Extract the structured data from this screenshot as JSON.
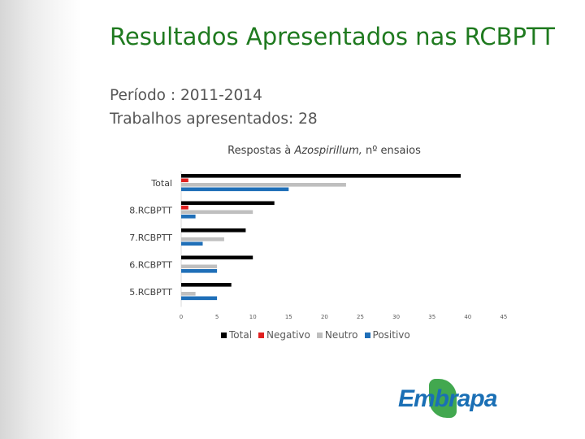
{
  "slide": {
    "title": "Resultados Apresentados nas RCBPTT",
    "period": "Período : 2011-2014",
    "works": "Trabalhos apresentados:  28",
    "logo_text": "Embrapa"
  },
  "colors": {
    "title_green": "#1f7a1f",
    "total": "#000000",
    "negativo": "#e02020",
    "neutro": "#bfbfbf",
    "positivo": "#1f6fb8",
    "logo_green": "#2e9e3c",
    "logo_blue": "#1a6fb5"
  },
  "chart_data": {
    "type": "bar",
    "orientation": "horizontal",
    "title_prefix": "Respostas à ",
    "title_italic": "Azospirillum,",
    "title_suffix": " nº ensaios",
    "categories": [
      "Total",
      "8.RCBPTT",
      "7.RCBPTT",
      "6.RCBPTT",
      "5.RCBPTT"
    ],
    "series": [
      {
        "name": "Total",
        "values": [
          39,
          13,
          9,
          10,
          7
        ]
      },
      {
        "name": "Negativo",
        "values": [
          1,
          1,
          0,
          0,
          0
        ]
      },
      {
        "name": "Neutro",
        "values": [
          23,
          10,
          6,
          5,
          2
        ]
      },
      {
        "name": "Positivo",
        "values": [
          15,
          2,
          3,
          5,
          5
        ]
      }
    ],
    "xlim": [
      0,
      45
    ],
    "xticks": [
      "0",
      "5",
      "10",
      "15",
      "20",
      "25",
      "30",
      "35",
      "40",
      "45"
    ],
    "grid": false,
    "legend_position": "bottom"
  }
}
